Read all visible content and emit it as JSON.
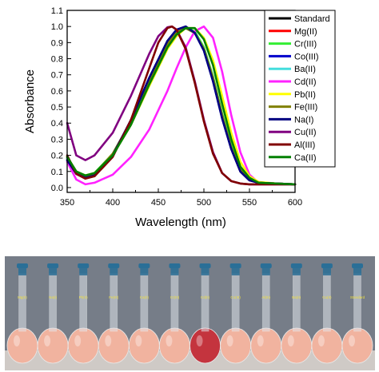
{
  "chart_data": {
    "type": "line",
    "xlabel": "Wavelength (nm)",
    "ylabel": "Absorbance",
    "xlim": [
      350,
      600
    ],
    "ylim": [
      -0.03,
      1.1
    ],
    "xticks": [
      "350",
      "400",
      "450",
      "500",
      "550",
      "600"
    ],
    "yticks": [
      "0.0",
      "0.1",
      "0.2",
      "0.3",
      "0.4",
      "0.5",
      "0.6",
      "0.7",
      "0.8",
      "0.9",
      "1.0",
      "1.1"
    ],
    "grid": false,
    "legend_position": "top-right",
    "series": [
      {
        "name": "Standard",
        "color": "#000000",
        "x": [
          350,
          360,
          370,
          380,
          400,
          420,
          440,
          460,
          470,
          480,
          490,
          500,
          510,
          520,
          530,
          540,
          550,
          560,
          580,
          600
        ],
        "y": [
          0.18,
          0.09,
          0.065,
          0.08,
          0.2,
          0.4,
          0.66,
          0.89,
          0.96,
          0.99,
          0.96,
          0.86,
          0.68,
          0.45,
          0.25,
          0.11,
          0.05,
          0.03,
          0.025,
          0.02
        ]
      },
      {
        "name": "Mg(II)",
        "color": "#ff0000",
        "x": [
          350,
          360,
          370,
          380,
          400,
          420,
          440,
          460,
          470,
          480,
          490,
          500,
          510,
          520,
          530,
          540,
          550,
          560,
          580,
          600
        ],
        "y": [
          0.19,
          0.095,
          0.07,
          0.085,
          0.21,
          0.41,
          0.67,
          0.9,
          0.97,
          1.0,
          0.96,
          0.86,
          0.67,
          0.44,
          0.24,
          0.1,
          0.045,
          0.03,
          0.025,
          0.02
        ]
      },
      {
        "name": "Cr(III)",
        "color": "#33ee33",
        "x": [
          350,
          360,
          370,
          380,
          400,
          420,
          440,
          460,
          470,
          480,
          490,
          500,
          510,
          520,
          530,
          540,
          550,
          560,
          580,
          600
        ],
        "y": [
          0.19,
          0.1,
          0.075,
          0.09,
          0.21,
          0.41,
          0.66,
          0.89,
          0.96,
          0.99,
          0.97,
          0.87,
          0.69,
          0.46,
          0.26,
          0.11,
          0.05,
          0.03,
          0.025,
          0.02
        ]
      },
      {
        "name": "Co(III)",
        "color": "#0000cc",
        "x": [
          350,
          360,
          370,
          380,
          400,
          420,
          440,
          460,
          470,
          480,
          490,
          500,
          510,
          520,
          530,
          540,
          550,
          560,
          580,
          600
        ],
        "y": [
          0.17,
          0.085,
          0.06,
          0.075,
          0.2,
          0.42,
          0.68,
          0.91,
          0.98,
          1.0,
          0.96,
          0.85,
          0.66,
          0.43,
          0.24,
          0.1,
          0.045,
          0.03,
          0.025,
          0.02
        ]
      },
      {
        "name": "Ba(II)",
        "color": "#44dddd",
        "x": [
          350,
          360,
          370,
          380,
          400,
          420,
          440,
          460,
          470,
          480,
          490,
          500,
          510,
          520,
          530,
          540,
          550,
          560,
          580,
          600
        ],
        "y": [
          0.18,
          0.09,
          0.065,
          0.08,
          0.2,
          0.4,
          0.66,
          0.89,
          0.96,
          0.99,
          0.96,
          0.86,
          0.68,
          0.45,
          0.25,
          0.11,
          0.05,
          0.03,
          0.025,
          0.02
        ]
      },
      {
        "name": "Cd(II)",
        "color": "#ff22ff",
        "x": [
          350,
          360,
          370,
          380,
          400,
          420,
          440,
          460,
          470,
          480,
          490,
          500,
          510,
          520,
          530,
          540,
          550,
          560,
          580,
          600
        ],
        "y": [
          0.16,
          0.05,
          0.02,
          0.03,
          0.08,
          0.19,
          0.36,
          0.6,
          0.74,
          0.87,
          0.97,
          1.0,
          0.93,
          0.72,
          0.45,
          0.22,
          0.08,
          0.03,
          0.025,
          0.02
        ]
      },
      {
        "name": "Pb(II)",
        "color": "#ffff00",
        "x": [
          350,
          360,
          370,
          380,
          400,
          420,
          440,
          460,
          470,
          480,
          490,
          500,
          510,
          520,
          530,
          540,
          550,
          560,
          580,
          600
        ],
        "y": [
          0.19,
          0.1,
          0.075,
          0.09,
          0.2,
          0.39,
          0.63,
          0.86,
          0.94,
          0.99,
          0.99,
          0.93,
          0.79,
          0.57,
          0.34,
          0.16,
          0.07,
          0.035,
          0.025,
          0.02
        ]
      },
      {
        "name": "Fe(III)",
        "color": "#808000",
        "x": [
          350,
          360,
          370,
          380,
          400,
          420,
          440,
          460,
          470,
          480,
          490,
          500,
          510,
          520,
          530,
          540,
          550,
          560,
          580,
          600
        ],
        "y": [
          0.19,
          0.1,
          0.07,
          0.085,
          0.21,
          0.41,
          0.66,
          0.89,
          0.96,
          0.99,
          0.96,
          0.86,
          0.68,
          0.45,
          0.25,
          0.11,
          0.05,
          0.03,
          0.025,
          0.02
        ]
      },
      {
        "name": "Na(I)",
        "color": "#000080",
        "x": [
          350,
          360,
          370,
          380,
          400,
          420,
          440,
          460,
          470,
          480,
          490,
          500,
          510,
          520,
          530,
          540,
          550,
          560,
          580,
          600
        ],
        "y": [
          0.17,
          0.085,
          0.06,
          0.075,
          0.2,
          0.42,
          0.68,
          0.91,
          0.98,
          1.0,
          0.96,
          0.85,
          0.66,
          0.43,
          0.24,
          0.1,
          0.045,
          0.03,
          0.025,
          0.02
        ]
      },
      {
        "name": "Cu(II)",
        "color": "#800080",
        "x": [
          350,
          360,
          370,
          380,
          400,
          420,
          440,
          450,
          460,
          465,
          470,
          480,
          490,
          500,
          510,
          520,
          530,
          540,
          550,
          560,
          580,
          600
        ],
        "y": [
          0.4,
          0.2,
          0.17,
          0.2,
          0.34,
          0.57,
          0.83,
          0.94,
          0.995,
          1.0,
          0.98,
          0.87,
          0.66,
          0.42,
          0.22,
          0.09,
          0.04,
          0.025,
          0.02,
          0.02,
          0.02,
          0.02
        ]
      },
      {
        "name": "Al(III)",
        "color": "#800000",
        "x": [
          350,
          360,
          370,
          380,
          400,
          420,
          440,
          450,
          460,
          465,
          470,
          480,
          490,
          500,
          510,
          520,
          530,
          540,
          550,
          560,
          580,
          600
        ],
        "y": [
          0.2,
          0.085,
          0.055,
          0.07,
          0.19,
          0.42,
          0.74,
          0.9,
          0.99,
          1.0,
          0.98,
          0.86,
          0.65,
          0.41,
          0.21,
          0.09,
          0.04,
          0.025,
          0.02,
          0.02,
          0.02,
          0.02
        ]
      },
      {
        "name": "Ca(II)",
        "color": "#008000",
        "x": [
          350,
          360,
          370,
          380,
          400,
          420,
          440,
          460,
          470,
          480,
          490,
          500,
          510,
          520,
          530,
          540,
          550,
          560,
          580,
          600
        ],
        "y": [
          0.19,
          0.1,
          0.075,
          0.09,
          0.2,
          0.39,
          0.64,
          0.87,
          0.95,
          0.99,
          0.99,
          0.92,
          0.76,
          0.52,
          0.3,
          0.13,
          0.06,
          0.03,
          0.025,
          0.02
        ]
      }
    ]
  },
  "photo": {
    "background": "#767d88",
    "shelf_color": "#cfcac6",
    "cap_color": "#2a6f97",
    "liquid_color": "#f1b39f",
    "highlight_liquid_color": "#c4343e",
    "flasks": [
      {
        "label": "Mg(II)",
        "highlight": false
      },
      {
        "label": "Na(I)",
        "highlight": false
      },
      {
        "label": "Pb(II)",
        "highlight": false
      },
      {
        "label": "Fe(III)",
        "highlight": false
      },
      {
        "label": "Ca(II)",
        "highlight": false
      },
      {
        "label": "Cr(III)",
        "highlight": false
      },
      {
        "label": "Cd(II)",
        "highlight": true
      },
      {
        "label": "Co(III)",
        "highlight": false
      },
      {
        "label": "Al(III)",
        "highlight": false
      },
      {
        "label": "Ba(II)",
        "highlight": false
      },
      {
        "label": "Cu(II)",
        "highlight": false
      },
      {
        "label": "Standard",
        "highlight": false
      }
    ]
  }
}
